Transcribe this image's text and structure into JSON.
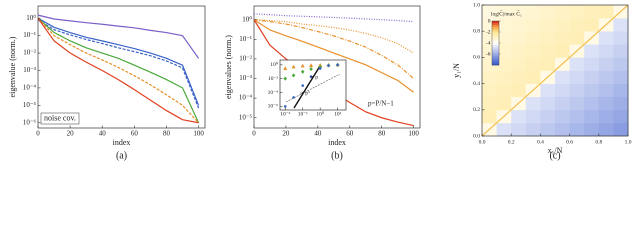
{
  "chart_data": [
    {
      "type": "line",
      "caption": "(a)",
      "xlabel": "index",
      "ylabel": "eigenvalue (norm.)",
      "annotation": "noise cov.",
      "log_y": true,
      "x": [
        0,
        10,
        20,
        30,
        40,
        50,
        60,
        70,
        80,
        90,
        100
      ],
      "xlim": [
        0,
        104
      ],
      "xticks": [
        0,
        20,
        40,
        60,
        80,
        100
      ],
      "ylim": [
        5e-07,
        5
      ],
      "yticks": [
        {
          "value": 1e-06,
          "label": "10⁻⁶"
        },
        {
          "value": 1e-05,
          "label": "10⁻⁵"
        },
        {
          "value": 0.0001,
          "label": "10⁻⁴"
        },
        {
          "value": 0.001,
          "label": "10⁻³"
        },
        {
          "value": 0.01,
          "label": "10⁻²"
        },
        {
          "value": 0.1,
          "label": "10⁻¹"
        },
        {
          "value": 1,
          "label": "10⁰"
        }
      ],
      "series": [
        {
          "color": "#7a5fc8",
          "dash": "none",
          "values": [
            1.5,
            0.9,
            0.7,
            0.55,
            0.45,
            0.35,
            0.28,
            0.2,
            0.15,
            0.1,
            0.005
          ]
        },
        {
          "color": "#3a63c8",
          "dash": "none",
          "values": [
            1,
            0.3,
            0.15,
            0.08,
            0.05,
            0.03,
            0.018,
            0.01,
            0.005,
            0.002,
            1e-05
          ]
        },
        {
          "color": "#3a63c8",
          "dash": "3,1.5",
          "values": [
            0.8,
            0.22,
            0.11,
            0.06,
            0.035,
            0.02,
            0.012,
            0.007,
            0.0035,
            0.0014,
            7e-06
          ]
        },
        {
          "color": "#4aa83a",
          "dash": "none",
          "values": [
            1,
            0.15,
            0.05,
            0.02,
            0.01,
            0.005,
            0.002,
            0.0008,
            0.0003,
            0.0001,
            1e-06
          ]
        },
        {
          "color": "#e8902a",
          "dash": "3,1.5",
          "values": [
            1,
            0.1,
            0.03,
            0.01,
            0.004,
            0.0015,
            0.0005,
            0.00015,
            4e-05,
            1e-05,
            1e-06
          ]
        },
        {
          "color": "#e04020",
          "dash": "none",
          "values": [
            1,
            0.05,
            0.01,
            0.003,
            0.001,
            0.0003,
            8e-05,
            2e-05,
            5e-06,
            1.5e-06,
            1e-06
          ]
        }
      ]
    },
    {
      "type": "line",
      "caption": "(b)",
      "xlabel": "index",
      "ylabel": "eigenvalues (norm.)",
      "log_y": true,
      "x": [
        0,
        10,
        20,
        30,
        40,
        50,
        60,
        70,
        80,
        90,
        100
      ],
      "xlim": [
        0,
        104
      ],
      "xticks": [
        0,
        20,
        40,
        60,
        80,
        100
      ],
      "ylim": [
        3e-06,
        5
      ],
      "yticks": [
        {
          "value": 1e-05,
          "label": "10⁻⁵"
        },
        {
          "value": 0.0001,
          "label": "10⁻⁴"
        },
        {
          "value": 0.001,
          "label": "10⁻³"
        },
        {
          "value": 0.01,
          "label": "10⁻²"
        },
        {
          "value": 0.1,
          "label": "10⁻¹"
        },
        {
          "value": 1,
          "label": "10⁰"
        }
      ],
      "series": [
        {
          "color": "#8866cc",
          "dash": "1,1.5",
          "values": [
            2,
            1.8,
            1.6,
            1.5,
            1.4,
            1.3,
            1.2,
            1.1,
            1,
            0.9,
            0.8
          ]
        },
        {
          "color": "#e8902a",
          "dash": "1,1.5",
          "values": [
            1,
            0.9,
            0.8,
            0.6,
            0.5,
            0.4,
            0.3,
            0.2,
            0.12,
            0.06,
            0.02
          ]
        },
        {
          "color": "#e8902a",
          "dash": "4,1.5,1,1.5",
          "values": [
            1,
            0.8,
            0.6,
            0.4,
            0.25,
            0.15,
            0.08,
            0.04,
            0.015,
            0.005,
            0.001
          ]
        },
        {
          "color": "#e8902a",
          "dash": "none",
          "values": [
            1,
            0.3,
            0.15,
            0.08,
            0.04,
            0.02,
            0.01,
            0.005,
            0.002,
            0.0008,
            0.0002
          ]
        },
        {
          "color": "#e04020",
          "dash": "none",
          "values": [
            1,
            0.05,
            0.01,
            0.003,
            0.0008,
            0.0002,
            6e-05,
            2e-05,
            1e-05,
            6e-06,
            4e-06
          ]
        }
      ]
    },
    {
      "type": "scatter",
      "log_x": true,
      "log_y": true,
      "annotations": [
        "∝ p",
        "∝ p³",
        "p=P/N−1"
      ],
      "x": [
        0.01,
        0.03,
        0.1,
        0.3,
        1,
        3,
        10
      ],
      "xlim": [
        0.005,
        30
      ],
      "xticks": [
        {
          "value": 0.01,
          "label": "10⁻²"
        },
        {
          "value": 0.1,
          "label": "10⁻¹"
        },
        {
          "value": 1,
          "label": "10⁰"
        },
        {
          "value": 10,
          "label": "10¹"
        }
      ],
      "ylim": [
        3e-07,
        5
      ],
      "yticks": [
        {
          "value": 1e-06,
          "label": "10⁻⁶"
        },
        {
          "value": 0.0001,
          "label": "10⁻⁴"
        },
        {
          "value": 0.01,
          "label": "10⁻²"
        },
        {
          "value": 1,
          "label": "10⁰"
        }
      ],
      "series": [
        {
          "color": "#e8902a",
          "marker": "triangle",
          "values": [
            0.3,
            0.5,
            0.7,
            0.8,
            0.9,
            0.95,
            1
          ]
        },
        {
          "color": "#4aa83a",
          "marker": "diamond",
          "values": [
            0.01,
            0.03,
            0.1,
            0.25,
            0.5,
            0.8,
            1
          ]
        },
        {
          "color": "#3a63c8",
          "marker": "circle",
          "values": [
            1e-06,
            2e-05,
            0.001,
            0.02,
            0.3,
            0.8,
            1
          ]
        }
      ]
    },
    {
      "type": "heatmap",
      "caption": "(c)",
      "xlabel": "x₁/N",
      "ylabel": "y₁/N",
      "colorbar_label": "log|C̃|/max C̃₁",
      "xlim": [
        0,
        1
      ],
      "ylim": [
        0,
        1
      ],
      "xticks": [
        {
          "value": 0,
          "label": "0.0"
        },
        0.2,
        0.4,
        0.6,
        0.8,
        {
          "value": 1,
          "label": "1.0"
        }
      ],
      "yticks": [
        {
          "value": 0,
          "label": "0.0"
        },
        0.2,
        0.4,
        0.6,
        0.8,
        {
          "value": 1,
          "label": "1.0"
        }
      ],
      "clim": [
        -8,
        0
      ],
      "cticks": [
        0,
        -2,
        -4,
        -6
      ],
      "values": [
        [
          -3.5,
          -4.7,
          -4.9,
          -5.1,
          -5.3,
          -5.5,
          -5.7,
          -5.9,
          -6.1,
          -6.3
        ],
        [
          -2.6,
          -3.5,
          -4.7,
          -4.9,
          -5.1,
          -5.3,
          -5.5,
          -5.7,
          -5.9,
          -6.1
        ],
        [
          -2.7,
          -2.6,
          -3.5,
          -4.7,
          -4.9,
          -5.1,
          -5.3,
          -5.5,
          -5.7,
          -5.9
        ],
        [
          -2.8,
          -2.7,
          -2.6,
          -3.5,
          -4.7,
          -4.9,
          -5.1,
          -5.3,
          -5.5,
          -5.7
        ],
        [
          -2.9,
          -2.8,
          -2.7,
          -2.6,
          -3.5,
          -4.7,
          -4.9,
          -5.1,
          -5.3,
          -5.5
        ],
        [
          -3,
          -2.9,
          -2.8,
          -2.7,
          -2.6,
          -3.5,
          -4.7,
          -4.9,
          -5.1,
          -5.3
        ],
        [
          -3.1,
          -3,
          -2.9,
          -2.8,
          -2.7,
          -2.6,
          -3.5,
          -4.7,
          -4.9,
          -5.1
        ],
        [
          -3.2,
          -3.1,
          -3,
          -2.9,
          -2.8,
          -2.7,
          -2.6,
          -3.5,
          -4.7,
          -4.9
        ],
        [
          -3.3,
          -3.2,
          -3.1,
          -3,
          -2.9,
          -2.8,
          -2.7,
          -2.6,
          -3.5,
          -4.7
        ],
        [
          -3.4,
          -3.3,
          -3.2,
          -3.1,
          -3,
          -2.9,
          -2.8,
          -2.7,
          -2.6,
          -3.5
        ]
      ]
    }
  ]
}
